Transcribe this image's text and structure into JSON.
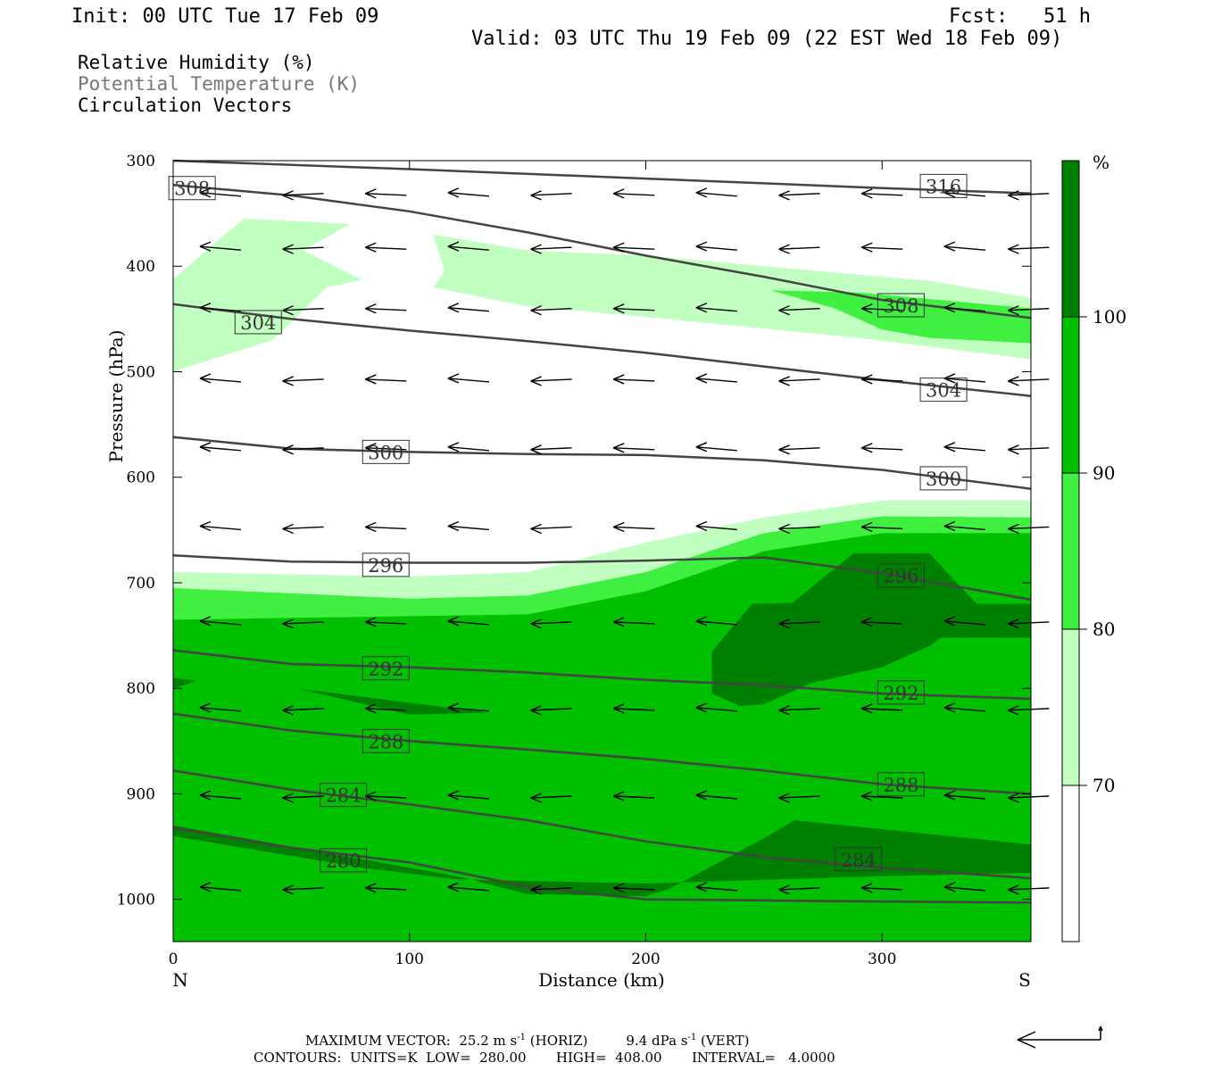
{
  "header": {
    "init": "Init: 00 UTC Tue 17 Feb 09",
    "fcst": "Fcst:   51 h",
    "valid": "Valid: 03 UTC Thu 19 Feb 09 (22 EST Wed 18 Feb 09)"
  },
  "fields": {
    "rh": "Relative Humidity (%)",
    "theta": "Potential Temperature (K)",
    "vectors": "Circulation Vectors"
  },
  "axes": {
    "ylabel": "Pressure (hPa)",
    "xlabel": "Distance (km)",
    "left_end": "N",
    "right_end": "S"
  },
  "colors": {
    "rh_70_80": "#c0ffc0",
    "rh_80_90": "#40f040",
    "rh_90_100": "#00c000",
    "rh_100": "#008000",
    "theta_line": "#444444"
  },
  "colorbar": {
    "unit": "%",
    "levels": [
      "70",
      "80",
      "90",
      "100"
    ]
  },
  "footer": {
    "max_vector_label": "MAXIMUM VECTOR:",
    "horiz_value": "25.2 m s",
    "horiz_sup": "-1",
    "horiz_unit": " (HORIZ)",
    "vert_value": "9.4 dPa s",
    "vert_sup": "-1",
    "vert_unit": " (VERT)",
    "contours": "CONTOURS:  UNITS=K  LOW=  280.00       HIGH=  408.00       INTERVAL=   4.0000"
  },
  "chart_data": {
    "type": "cross-section",
    "x_range_km": [
      0,
      363
    ],
    "y_range_hpa": [
      300,
      1040
    ],
    "x_ticks": [
      "0",
      "100",
      "200",
      "300"
    ],
    "y_ticks": [
      "300",
      "400",
      "500",
      "600",
      "700",
      "800",
      "900",
      "1000"
    ],
    "theta_contours": [
      {
        "label": "316",
        "points": [
          [
            0,
            300
          ],
          [
            100,
            308
          ],
          [
            200,
            317
          ],
          [
            300,
            326
          ],
          [
            363,
            331
          ]
        ],
        "labels_at": [
          [
            326,
            324
          ]
        ]
      },
      {
        "label": "308",
        "points": [
          [
            0,
            323
          ],
          [
            50,
            333
          ],
          [
            100,
            348
          ],
          [
            150,
            368
          ],
          [
            200,
            390
          ],
          [
            250,
            410
          ],
          [
            300,
            432
          ],
          [
            363,
            449
          ]
        ],
        "labels_at": [
          [
            8,
            326
          ],
          [
            308,
            437
          ]
        ]
      },
      {
        "label": "304",
        "points": [
          [
            0,
            436
          ],
          [
            50,
            450
          ],
          [
            100,
            461
          ],
          [
            150,
            471
          ],
          [
            200,
            482
          ],
          [
            250,
            495
          ],
          [
            300,
            508
          ],
          [
            363,
            523
          ]
        ],
        "labels_at": [
          [
            36,
            453
          ],
          [
            326,
            517
          ]
        ]
      },
      {
        "label": "300",
        "points": [
          [
            0,
            562
          ],
          [
            50,
            573
          ],
          [
            100,
            576
          ],
          [
            150,
            578
          ],
          [
            200,
            579
          ],
          [
            250,
            584
          ],
          [
            300,
            593
          ],
          [
            363,
            611
          ]
        ],
        "labels_at": [
          [
            90,
            576
          ],
          [
            326,
            601
          ]
        ]
      },
      {
        "label": "296",
        "points": [
          [
            0,
            674
          ],
          [
            50,
            680
          ],
          [
            100,
            681
          ],
          [
            150,
            681
          ],
          [
            200,
            679
          ],
          [
            250,
            676
          ],
          [
            300,
            691
          ],
          [
            363,
            716
          ]
        ],
        "labels_at": [
          [
            90,
            683
          ],
          [
            308,
            693
          ]
        ]
      },
      {
        "label": "292",
        "points": [
          [
            0,
            764
          ],
          [
            50,
            777
          ],
          [
            100,
            780
          ],
          [
            150,
            785
          ],
          [
            200,
            792
          ],
          [
            250,
            797
          ],
          [
            300,
            805
          ],
          [
            363,
            810
          ]
        ],
        "labels_at": [
          [
            90,
            781
          ],
          [
            308,
            804
          ]
        ]
      },
      {
        "label": "288",
        "points": [
          [
            0,
            824
          ],
          [
            50,
            840
          ],
          [
            100,
            850
          ],
          [
            150,
            858
          ],
          [
            200,
            867
          ],
          [
            250,
            878
          ],
          [
            300,
            891
          ],
          [
            363,
            900
          ]
        ],
        "labels_at": [
          [
            90,
            850
          ],
          [
            308,
            891
          ]
        ]
      },
      {
        "label": "284",
        "points": [
          [
            0,
            878
          ],
          [
            50,
            896
          ],
          [
            100,
            910
          ],
          [
            150,
            925
          ],
          [
            200,
            945
          ],
          [
            250,
            960
          ],
          [
            300,
            970
          ],
          [
            363,
            980
          ]
        ],
        "labels_at": [
          [
            72,
            901
          ],
          [
            290,
            962
          ]
        ]
      },
      {
        "label": "280",
        "points": [
          [
            0,
            932
          ],
          [
            50,
            951
          ],
          [
            100,
            965
          ],
          [
            150,
            988
          ],
          [
            200,
            1000
          ],
          [
            250,
            1001
          ],
          [
            300,
            1002
          ],
          [
            363,
            1003
          ]
        ],
        "labels_at": [
          [
            72,
            963
          ]
        ]
      }
    ],
    "rh_shading": {
      "levels": [
        70,
        80,
        90,
        100
      ],
      "regions": [
        {
          "range": "70-80",
          "points": [
            [
              0,
              412
            ],
            [
              30,
              355
            ],
            [
              75,
              360
            ],
            [
              55,
              385
            ],
            [
              80,
              413
            ],
            [
              65,
              420
            ],
            [
              42,
              470
            ],
            [
              0,
              500
            ]
          ]
        },
        {
          "range": "70-80",
          "points": [
            [
              110,
              370
            ],
            [
              150,
              385
            ],
            [
              200,
              390
            ],
            [
              270,
              404
            ],
            [
              320,
              414
            ],
            [
              363,
              430
            ],
            [
              363,
              488
            ],
            [
              290,
              468
            ],
            [
              200,
              448
            ],
            [
              150,
              438
            ],
            [
              110,
              420
            ],
            [
              115,
              405
            ]
          ]
        },
        {
          "range": "70-80",
          "points": [
            [
              0,
              690
            ],
            [
              100,
              694
            ],
            [
              150,
              690
            ],
            [
              200,
              662
            ],
            [
              250,
              638
            ],
            [
              300,
              622
            ],
            [
              363,
              622
            ],
            [
              363,
              1040
            ],
            [
              0,
              1040
            ]
          ]
        },
        {
          "range": "80-90",
          "points": [
            [
              0,
              705
            ],
            [
              100,
              715
            ],
            [
              150,
              712
            ],
            [
              200,
              690
            ],
            [
              250,
              653
            ],
            [
              300,
              637
            ],
            [
              363,
              638
            ],
            [
              363,
              1040
            ],
            [
              0,
              1040
            ]
          ]
        },
        {
          "range": "80-90",
          "points": [
            [
              253,
              423
            ],
            [
              290,
              425
            ],
            [
              363,
              440
            ],
            [
              363,
              473
            ],
            [
              320,
              468
            ],
            [
              300,
              460
            ],
            [
              280,
              440
            ]
          ]
        },
        {
          "range": "90-100",
          "points": [
            [
              0,
              735
            ],
            [
              150,
              730
            ],
            [
              200,
              708
            ],
            [
              250,
              670
            ],
            [
              300,
              653
            ],
            [
              363,
              653
            ],
            [
              363,
              1040
            ],
            [
              0,
              1040
            ]
          ]
        },
        {
          "range": "100+",
          "points": [
            [
              228,
              765
            ],
            [
              245,
              720
            ],
            [
              262,
              719
            ],
            [
              288,
              672
            ],
            [
              320,
              672
            ],
            [
              340,
              720
            ],
            [
              363,
              720
            ],
            [
              363,
              752
            ],
            [
              325,
              752
            ],
            [
              320,
              760
            ],
            [
              300,
              780
            ],
            [
              270,
              795
            ],
            [
              250,
              815
            ],
            [
              240,
              817
            ],
            [
              228,
              805
            ]
          ]
        },
        {
          "range": "100+",
          "points": [
            [
              52,
              800
            ],
            [
              100,
              825
            ],
            [
              133,
              823
            ]
          ]
        },
        {
          "range": "100+",
          "points": [
            [
              0,
              790
            ],
            [
              10,
              793
            ],
            [
              0,
              800
            ]
          ]
        },
        {
          "range": "100+",
          "points": [
            [
              0,
              930
            ],
            [
              80,
              962
            ],
            [
              120,
              978
            ],
            [
              150,
              995
            ],
            [
              200,
              997
            ],
            [
              210,
              990
            ],
            [
              250,
              942
            ],
            [
              263,
              925
            ],
            [
              363,
              948
            ],
            [
              363,
              975
            ],
            [
              300,
              978
            ],
            [
              200,
              985
            ],
            [
              120,
              981
            ],
            [
              80,
              970
            ],
            [
              0,
              940
            ]
          ]
        }
      ]
    },
    "circulation_vectors": {
      "rows_hpa": [
        332,
        383,
        441,
        508,
        573,
        648,
        738,
        820,
        903,
        990
      ],
      "x_km": [
        20,
        55,
        90,
        125,
        160,
        195,
        230,
        265,
        300,
        335,
        362
      ],
      "u_ms": -25.2,
      "max_horiz_ms": 25.2,
      "max_vert_dpa_s": 9.4
    }
  }
}
